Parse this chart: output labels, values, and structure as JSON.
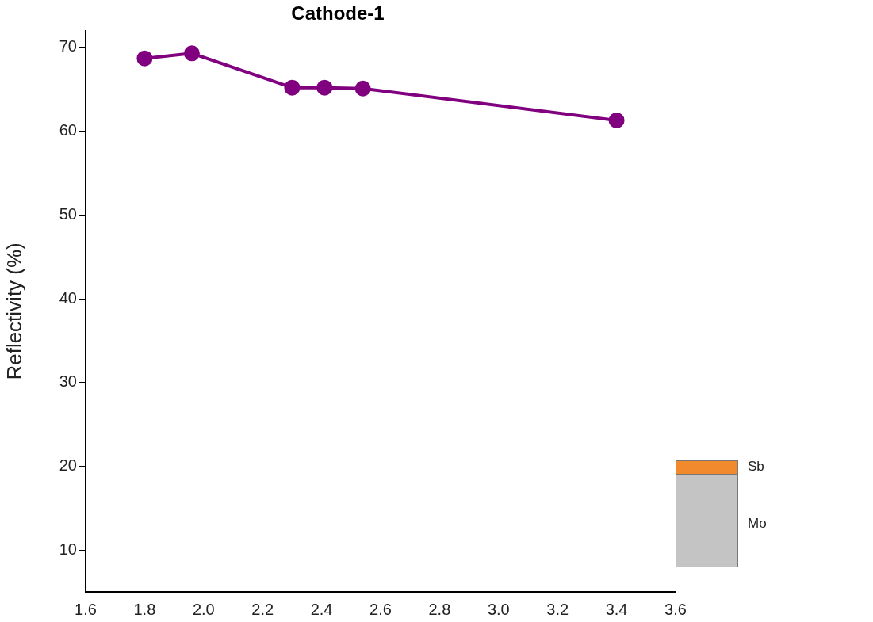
{
  "chart_data": {
    "type": "line",
    "title": "Cathode-1",
    "ylabel": "Reflectivity (%)",
    "x": [
      1.8,
      1.96,
      2.3,
      2.41,
      2.54,
      3.4
    ],
    "series": [
      {
        "color": "#800080",
        "values": [
          68.7,
          69.3,
          65.2,
          65.2,
          65.1,
          61.3
        ]
      }
    ],
    "xlim": [
      1.6,
      3.6
    ],
    "xticks": [
      1.6,
      1.8,
      {
        "value": 2,
        "label": "2.0"
      },
      2.2,
      2.4,
      2.6,
      2.8,
      {
        "value": 3,
        "label": "3.0"
      },
      3.2,
      3.4,
      3.6
    ],
    "ylim": [
      5,
      72
    ],
    "yticks": [
      10,
      20,
      30,
      40,
      50,
      60,
      70
    ],
    "grid": false,
    "legend": false,
    "marker": "circle",
    "line_style": "solid",
    "annotations": [
      "Sb",
      "Mo"
    ]
  }
}
